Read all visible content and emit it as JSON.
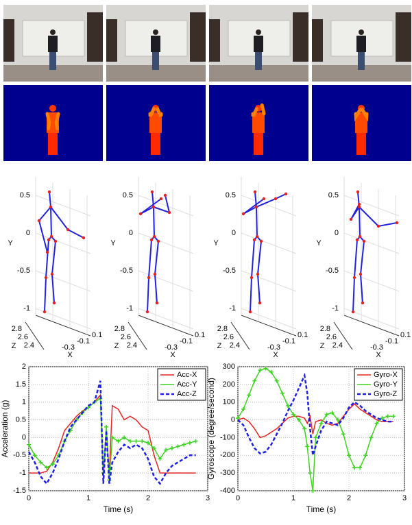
{
  "skeleton_axes": {
    "y_label": "Y",
    "z_label": "Z",
    "x_label": "X",
    "yticks": [
      0.5,
      0,
      -0.5,
      -1
    ],
    "zticks": [
      2.8,
      2.6,
      2.4
    ],
    "xticks": [
      -0.3,
      -0.1,
      0.1
    ]
  },
  "chart_data": [
    {
      "type": "line",
      "xlabel": "Time (s)",
      "ylabel": "Acceleration (g)",
      "x": [
        0,
        0.1,
        0.2,
        0.3,
        0.4,
        0.5,
        0.6,
        0.7,
        0.8,
        0.9,
        1.0,
        1.1,
        1.2,
        1.25,
        1.3,
        1.35,
        1.4,
        1.5,
        1.6,
        1.7,
        1.8,
        1.9,
        2.0,
        2.1,
        2.2,
        2.3,
        2.4,
        2.5,
        2.6,
        2.7,
        2.8
      ],
      "series": [
        {
          "name": "Acc-X",
          "color": "#e8231f",
          "linestyle": "solid",
          "marker": "none",
          "values": [
            -1.0,
            -1.0,
            -1.0,
            -0.95,
            -0.7,
            -0.3,
            0.2,
            0.4,
            0.6,
            0.75,
            0.85,
            1.0,
            1.2,
            -1.1,
            0.2,
            -1.0,
            0.9,
            0.8,
            0.5,
            0.6,
            0.5,
            0.3,
            0.2,
            -0.5,
            -1.0,
            -1.0,
            -1.0,
            -1.0,
            -1.0,
            -1.0,
            -1.0
          ]
        },
        {
          "name": "Acc-Y",
          "color": "#3cd31e",
          "linestyle": "solid",
          "marker": "plus",
          "values": [
            -0.2,
            -0.5,
            -0.7,
            -0.85,
            -0.75,
            -0.5,
            -0.1,
            0.2,
            0.5,
            0.7,
            0.85,
            1.0,
            1.1,
            -1.0,
            0.3,
            -1.2,
            0.0,
            -0.1,
            0.0,
            -0.1,
            -0.1,
            -0.1,
            -0.15,
            -0.3,
            -0.6,
            -0.35,
            -0.3,
            -0.25,
            -0.2,
            -0.15,
            -0.1
          ]
        },
        {
          "name": "Acc-Z",
          "color": "#1f1fe8",
          "linestyle": "dashed",
          "marker": "none",
          "values": [
            -0.4,
            -0.7,
            -1.1,
            -1.3,
            -1.0,
            -0.6,
            -0.1,
            0.3,
            0.5,
            0.7,
            0.9,
            1.0,
            1.6,
            -1.3,
            0.2,
            -1.3,
            -0.7,
            -0.4,
            -0.2,
            -0.3,
            -0.2,
            -0.3,
            -0.6,
            -1.1,
            -1.3,
            -1.0,
            -0.8,
            -0.7,
            -0.6,
            -0.5,
            -0.5
          ]
        }
      ],
      "xlim": [
        0,
        3
      ],
      "ylim": [
        -1.5,
        2
      ],
      "xticks": [
        0,
        1,
        2,
        3
      ],
      "yticks": [
        -1.5,
        -1,
        -0.5,
        0,
        0.5,
        1,
        1.5,
        2
      ],
      "grid": true,
      "legend": "upper right"
    },
    {
      "type": "line",
      "xlabel": "Time (s)",
      "ylabel": "Gyroscope (degree/second)",
      "x": [
        0,
        0.1,
        0.2,
        0.3,
        0.4,
        0.5,
        0.6,
        0.7,
        0.8,
        0.9,
        1.0,
        1.1,
        1.2,
        1.25,
        1.3,
        1.35,
        1.4,
        1.5,
        1.6,
        1.7,
        1.8,
        1.9,
        2.0,
        2.1,
        2.2,
        2.3,
        2.4,
        2.5,
        2.6,
        2.7,
        2.8
      ],
      "series": [
        {
          "name": "Gyro-X",
          "color": "#e8231f",
          "linestyle": "solid",
          "marker": "none",
          "values": [
            0,
            10,
            -10,
            -50,
            -100,
            -90,
            -70,
            -50,
            -20,
            10,
            20,
            20,
            10,
            -20,
            20,
            -80,
            -10,
            0,
            -20,
            -30,
            -20,
            20,
            60,
            90,
            60,
            40,
            20,
            0,
            -10,
            -10,
            -10
          ]
        },
        {
          "name": "Gyro-Y",
          "color": "#3cd31e",
          "linestyle": "solid",
          "marker": "plus",
          "values": [
            10,
            60,
            140,
            220,
            280,
            290,
            270,
            220,
            150,
            80,
            30,
            0,
            -50,
            -150,
            -300,
            -400,
            -100,
            -20,
            30,
            40,
            0,
            -80,
            -200,
            -270,
            -270,
            -200,
            -100,
            -20,
            10,
            20,
            20
          ]
        },
        {
          "name": "Gyro-Z",
          "color": "#1f1fe8",
          "linestyle": "dashed",
          "marker": "none",
          "values": [
            0,
            -30,
            -100,
            -160,
            -190,
            -180,
            -140,
            -80,
            -20,
            50,
            110,
            180,
            250,
            150,
            -50,
            -200,
            -150,
            -60,
            -10,
            -20,
            -30,
            10,
            70,
            100,
            80,
            50,
            30,
            10,
            0,
            -10,
            -10
          ]
        }
      ],
      "xlim": [
        0,
        3
      ],
      "ylim": [
        -400,
        300
      ],
      "xticks": [
        0,
        1,
        2,
        3
      ],
      "yticks": [
        -400,
        -300,
        -200,
        -100,
        0,
        100,
        200,
        300
      ],
      "grid": true,
      "legend": "upper right"
    }
  ]
}
